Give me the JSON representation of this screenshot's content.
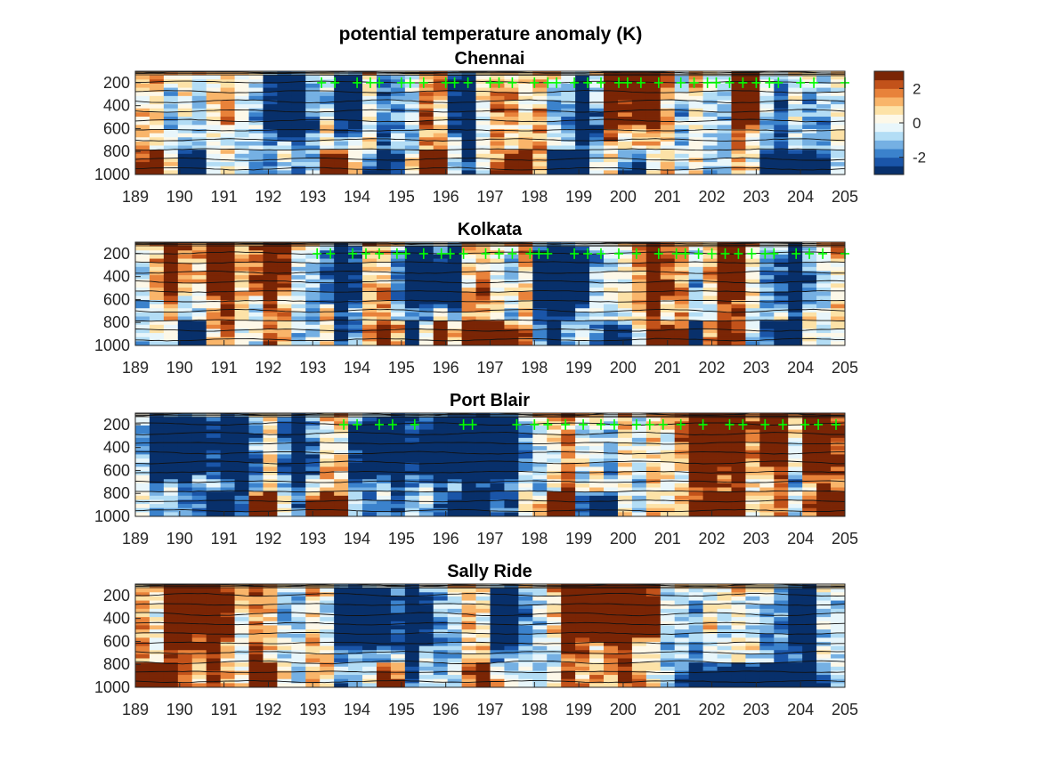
{
  "figure": {
    "title": "potential temperature anomaly (K)"
  },
  "chart_data": {
    "type": "heatmap",
    "colormap": {
      "name": "diverging blue-white-orange",
      "colors": [
        "#08306b",
        "#1a55a8",
        "#3b82cc",
        "#75b0e3",
        "#b3ddf5",
        "#e8f6fb",
        "#fdf8e8",
        "#fde2a7",
        "#f9b56a",
        "#e8823a",
        "#c2521a",
        "#7a2505"
      ],
      "clim": [
        -3,
        3
      ],
      "ticks": [
        2,
        0,
        -2
      ],
      "tick_labels": [
        "2",
        "0",
        "-2"
      ]
    },
    "x_axis": {
      "ticks": [
        189,
        190,
        191,
        192,
        193,
        194,
        195,
        196,
        197,
        198,
        199,
        200,
        201,
        202,
        203,
        204,
        205
      ],
      "tick_labels": [
        "189",
        "190",
        "191",
        "192",
        "193",
        "194",
        "195",
        "196",
        "197",
        "198",
        "199",
        "200",
        "201",
        "202",
        "203",
        "204",
        "205"
      ],
      "xlim": [
        189,
        205
      ]
    },
    "y_axis": {
      "ticks": [
        200,
        400,
        600,
        800,
        1000
      ],
      "tick_labels": [
        "200",
        "400",
        "600",
        "800",
        "1000"
      ],
      "ylim": [
        100,
        1000
      ],
      "reversed": true
    },
    "markers": {
      "symbol": "+",
      "color": "#00ff00",
      "level": 200
    },
    "panels": [
      {
        "title": "Chennai",
        "warm_near_surface": [
          189.5,
          193.5,
          195.6,
          197.7
        ],
        "cold_near_surface": [
          190.3,
          194.6,
          198.6,
          200.3,
          203.5,
          204.2
        ],
        "warm_upper": [
          199.7,
          200.5,
          202.8
        ],
        "cold_upper": [
          192.4,
          193.8,
          196.4,
          199.2
        ],
        "marker_x": [
          193.2,
          193.5,
          194.0,
          194.3,
          194.5,
          195.0,
          195.2,
          195.5,
          196.0,
          196.2,
          196.5,
          197.0,
          197.2,
          197.5,
          198.0,
          198.3,
          198.5,
          198.9,
          199.2,
          199.5,
          199.9,
          200.1,
          200.4,
          200.8,
          201.3,
          201.6,
          201.9,
          202.1,
          202.4,
          202.7,
          203.0,
          203.3,
          203.5,
          204.0,
          204.3,
          205.0
        ]
      },
      {
        "title": "Kolkata",
        "warm_near_surface": [
          194.8,
          195.8,
          196.6,
          197.3,
          201.2,
          202.2
        ],
        "cold_near_surface": [
          190.2,
          195.2,
          199.8,
          201.6,
          203.6
        ],
        "warm_upper": [
          189.8,
          190.8,
          192.0,
          200.7,
          202.4
        ],
        "cold_upper": [
          193.6,
          195.4,
          196.1,
          198.4,
          199.0,
          203.9
        ],
        "marker_x": [
          193.1,
          193.4,
          193.9,
          194.2,
          194.5,
          194.9,
          195.1,
          195.5,
          195.9,
          196.1,
          196.4,
          196.9,
          197.2,
          197.5,
          197.9,
          198.1,
          198.3,
          198.9,
          199.2,
          199.5,
          199.9,
          200.3,
          200.8,
          201.2,
          201.4,
          201.7,
          202.0,
          202.3,
          202.6,
          202.9,
          203.2,
          203.4,
          203.9,
          204.2,
          204.5,
          205.0
        ]
      },
      {
        "title": "Port Blair",
        "warm_near_surface": [
          191.8,
          193.3,
          198.5,
          202.1,
          204.8
        ],
        "cold_near_surface": [
          190.9,
          196.5,
          199.4
        ],
        "warm_upper": [
          201.7,
          202.5,
          203.4,
          204.4
        ],
        "cold_upper": [
          189.6,
          190.3,
          191.3,
          192.7,
          194.2,
          194.9,
          195.8,
          196.4,
          196.9,
          197.3
        ],
        "marker_x": [
          193.7,
          194.0,
          194.5,
          194.8,
          195.3,
          196.4,
          196.6,
          197.6,
          198.0,
          198.3,
          198.7,
          199.1,
          199.5,
          199.8,
          200.3,
          200.6,
          200.9,
          201.3,
          201.8,
          202.4,
          202.7,
          203.2,
          203.6,
          204.1,
          204.4,
          204.8
        ]
      },
      {
        "title": "Sally Ride",
        "warm_near_surface": [
          189.5,
          191.9,
          194.7,
          196.9
        ],
        "cold_near_surface": [
          201.7,
          202.6,
          203.5,
          204.2
        ],
        "warm_upper": [
          190.0,
          190.8,
          198.8,
          199.3,
          199.9,
          200.5
        ],
        "cold_upper": [
          193.8,
          194.4,
          195.3,
          197.3,
          204.0
        ],
        "marker_x": []
      }
    ]
  }
}
